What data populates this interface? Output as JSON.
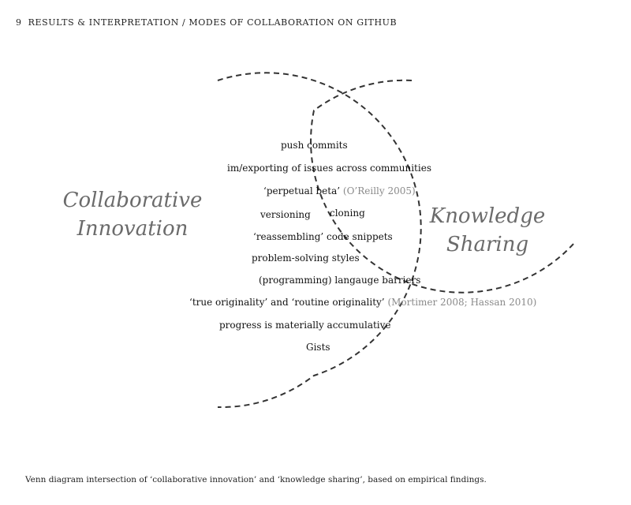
{
  "header": {
    "number": "9",
    "title": "RESULTS & INTERPRETATION / MODES OF COLLABORATION ON GITHUB"
  },
  "venn": {
    "left_label": [
      "Collaborative",
      "Innovation"
    ],
    "right_label": [
      "Knowledge",
      "Sharing"
    ],
    "intersection_items": [
      {
        "text": "push commits",
        "citation": ""
      },
      {
        "text": "im/exporting of issues across communities",
        "citation": ""
      },
      {
        "text": "‘perpetual beta’",
        "citation": "(O’Reilly 2005)"
      },
      {
        "text": "versioning",
        "citation": ""
      },
      {
        "text": "cloning",
        "citation": ""
      },
      {
        "text": "‘reassembling’ code snippets",
        "citation": ""
      },
      {
        "text": "problem-solving styles",
        "citation": ""
      },
      {
        "text": "(programming) langauge barriers",
        "citation": ""
      },
      {
        "text": "‘true originality’ and ‘routine originality’",
        "citation": "(Mortimer 2008; Hassan 2010)"
      },
      {
        "text": "progress is materially accumulative",
        "citation": ""
      },
      {
        "text": "Gists",
        "citation": ""
      }
    ]
  },
  "caption": "Venn diagram intersection of ‘collaborative innovation’ and ‘knowledge sharing’, based on empirical findings."
}
